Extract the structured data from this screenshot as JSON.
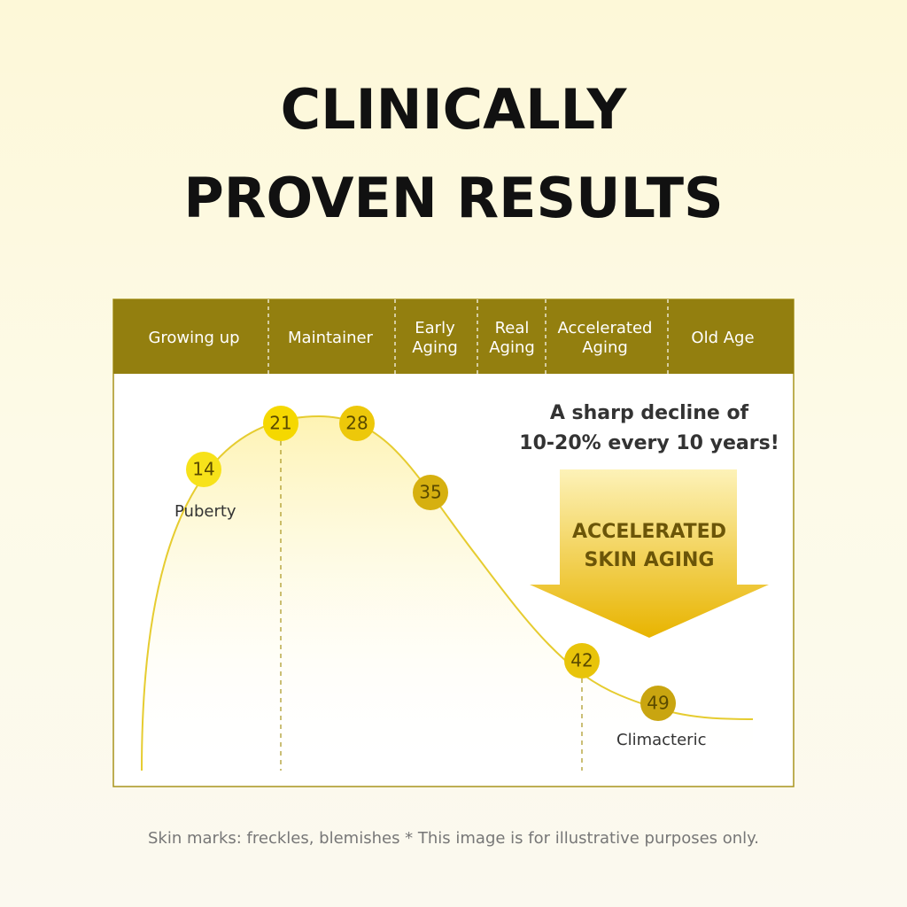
{
  "title": [
    "CLINICALLY",
    "PROVEN RESULTS"
  ],
  "stages": [
    {
      "label": [
        "Growing up"
      ]
    },
    {
      "label": [
        "Maintainer"
      ]
    },
    {
      "label": [
        "Early",
        "Aging"
      ]
    },
    {
      "label": [
        "Real",
        "Aging"
      ]
    },
    {
      "label": [
        "Accelerated",
        "Aging"
      ]
    },
    {
      "label": [
        "Old Age"
      ]
    }
  ],
  "points": [
    {
      "age": 14,
      "label": "Puberty"
    },
    {
      "age": 21
    },
    {
      "age": 28
    },
    {
      "age": 35
    },
    {
      "age": 42
    },
    {
      "age": 49,
      "label": "Climacteric"
    }
  ],
  "callout": [
    "A sharp decline of",
    "10-20% every 10 years!"
  ],
  "arrow_text": [
    "ACCELERATED",
    "SKIN AGING"
  ],
  "footnote": "Skin marks: freckles, blemishes * This image is for illustrative purposes only."
}
